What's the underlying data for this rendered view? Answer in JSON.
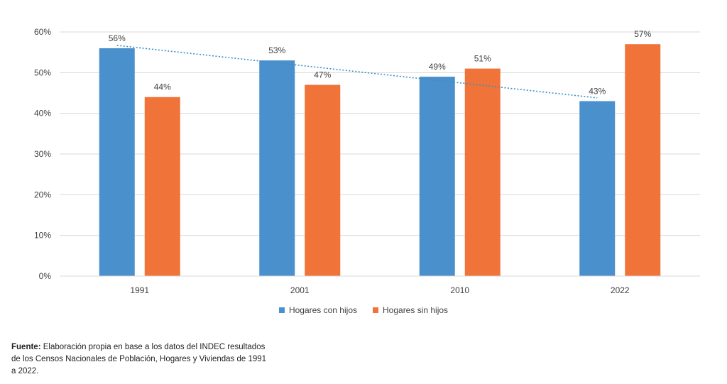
{
  "chart_data": {
    "type": "bar",
    "categories": [
      "1991",
      "2001",
      "2010",
      "2022"
    ],
    "series": [
      {
        "name": "Hogares con hijos",
        "values": [
          56,
          53,
          49,
          43
        ],
        "labels": [
          "56%",
          "53%",
          "49%",
          "43%"
        ],
        "color": "#4A90CC"
      },
      {
        "name": "Hogares sin hijos",
        "values": [
          44,
          47,
          51,
          57
        ],
        "labels": [
          "44%",
          "47%",
          "51%",
          "57%"
        ],
        "color": "#F0743A"
      }
    ],
    "trendline": {
      "series": "Hogares con hijos",
      "style": "dotted",
      "color": "#3A8FC4"
    },
    "ylim": [
      0,
      60
    ],
    "yticks": [
      "0%",
      "10%",
      "20%",
      "30%",
      "40%",
      "50%",
      "60%"
    ],
    "ytick_values": [
      0,
      10,
      20,
      30,
      40,
      50,
      60
    ],
    "grid": true,
    "legend_position": "bottom"
  },
  "source": {
    "label": "Fuente:",
    "text": "Elaboración propia en base a los datos del INDEC resultados de los Censos Nacionales de Población, Hogares y Viviendas de 1991 a 2022."
  }
}
